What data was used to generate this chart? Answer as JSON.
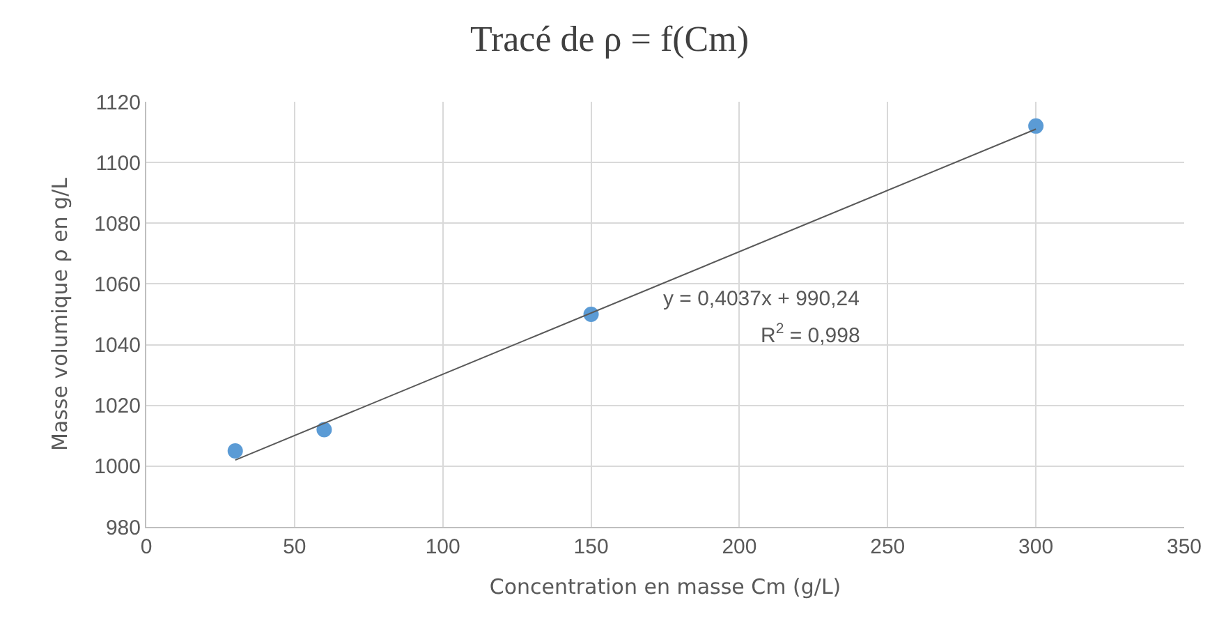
{
  "chart_data": {
    "type": "scatter",
    "title": "Tracé de ρ = f(Cm)",
    "xlabel": "Concentration en masse Cm (g/L)",
    "ylabel": "Masse volumique ρ en g/L",
    "series": [
      {
        "color": "#5b9bd5",
        "marker": "circle",
        "x": [
          30,
          60,
          150,
          300
        ],
        "values": [
          1005,
          1012,
          1050,
          1112
        ]
      },
      {
        "type": "line",
        "color": "#595959",
        "line_style": "solid",
        "x": [
          30,
          300
        ],
        "values": [
          1002,
          1111
        ]
      }
    ],
    "annotations": [
      "y = 0,4037x + 990,24",
      "R$^{2}$ = 0,998"
    ],
    "xlim": [
      0,
      350
    ],
    "xticks": [
      0,
      50,
      100,
      150,
      200,
      250,
      300,
      350
    ],
    "ylim": [
      980,
      1120
    ],
    "yticks": [
      980,
      1000,
      1020,
      1040,
      1060,
      1080,
      1100,
      1120
    ],
    "grid": true
  }
}
